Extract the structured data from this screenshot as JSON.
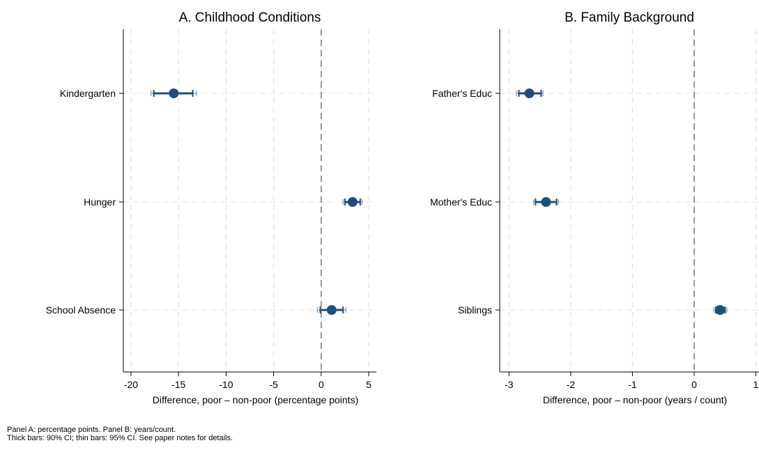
{
  "chart_data": [
    {
      "type": "scatter",
      "panel": "A",
      "title": "A. Childhood Conditions",
      "xlabel": "Difference, poor – non-poor (percentage points)",
      "ylabel": "",
      "xlim": [
        -20.8,
        5.8
      ],
      "xticks": [
        -20,
        -15,
        -10,
        -5,
        0,
        5
      ],
      "x_tick_labels": [
        "-20",
        "-15",
        "-10",
        "-5",
        "0",
        "5"
      ],
      "reference_line": 0,
      "grid": true,
      "categories": [
        "Kindergarten",
        "Hunger",
        "School Absence"
      ],
      "estimates": [
        -15.5,
        3.3,
        1.1
      ],
      "ci90": [
        [
          -17.6,
          -13.5
        ],
        [
          2.5,
          4.1
        ],
        [
          -0.1,
          2.3
        ]
      ],
      "ci95": [
        [
          -17.9,
          -13.1
        ],
        [
          2.3,
          4.3
        ],
        [
          -0.4,
          2.6
        ]
      ],
      "color": "#1f4e79"
    },
    {
      "type": "scatter",
      "panel": "B",
      "title": "B. Family Background",
      "xlabel": "Difference, poor – non-poor (years / count)",
      "ylabel": "",
      "xlim": [
        -3.15,
        1.05
      ],
      "xticks": [
        -3,
        -2,
        -1,
        0,
        1
      ],
      "x_tick_labels": [
        "-3",
        "-2",
        "-1",
        "0",
        "1"
      ],
      "reference_line": 0,
      "grid": true,
      "categories": [
        "Father's Educ",
        "Mother's Educ",
        "Siblings"
      ],
      "estimates": [
        -2.67,
        -2.4,
        0.42
      ],
      "ci90": [
        [
          -2.84,
          -2.48
        ],
        [
          -2.57,
          -2.23
        ],
        [
          0.35,
          0.5
        ]
      ],
      "ci95": [
        [
          -2.88,
          -2.45
        ],
        [
          -2.6,
          -2.2
        ],
        [
          0.32,
          0.53
        ]
      ],
      "color": "#1f4e79"
    }
  ],
  "notes": [
    "Panel A: percentage points. Panel B: years/count.",
    "Thick bars: 90% CI; thin bars: 95% CI. See paper notes for details."
  ]
}
